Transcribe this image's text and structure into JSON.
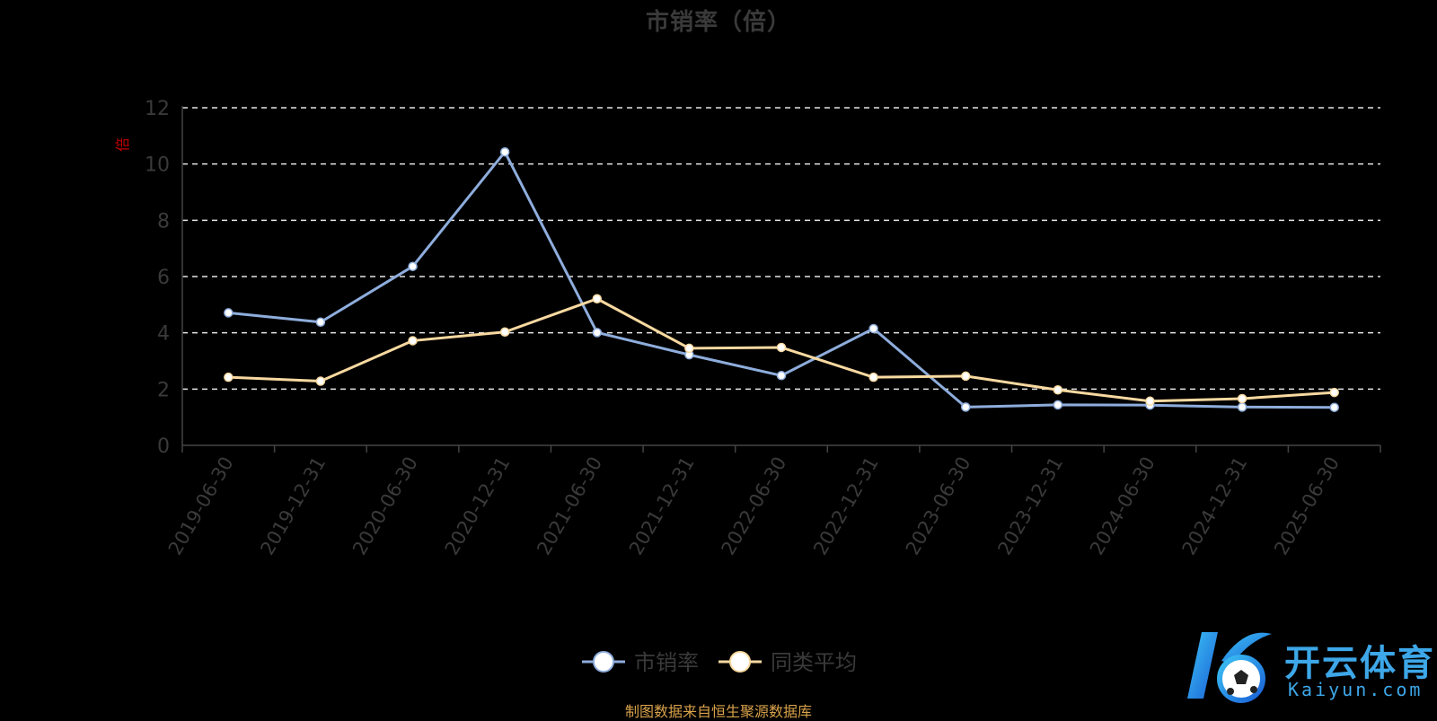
{
  "chart_data": {
    "type": "line",
    "title": "市销率（倍）",
    "ylabel": "倍",
    "xlabel": "",
    "ylim": [
      0,
      12
    ],
    "yticks": [
      0,
      2,
      4,
      6,
      8,
      10,
      12
    ],
    "grid": true,
    "legend_position": "bottom",
    "categories": [
      "2019-06-30",
      "2019-12-31",
      "2020-06-30",
      "2020-12-31",
      "2021-06-30",
      "2021-12-31",
      "2022-06-30",
      "2022-12-31",
      "2023-06-30",
      "2023-12-31",
      "2024-06-30",
      "2024-12-31",
      "2025-06-30"
    ],
    "series": [
      {
        "name": "市销率",
        "color": "#8eaddc",
        "values": [
          4.71,
          4.38,
          6.36,
          10.43,
          4.01,
          3.22,
          2.48,
          4.15,
          1.36,
          1.44,
          1.43,
          1.36,
          1.35
        ]
      },
      {
        "name": "同类平均",
        "color": "#f8d9a0",
        "values": [
          2.42,
          2.28,
          3.72,
          4.03,
          5.21,
          3.45,
          3.48,
          2.42,
          2.46,
          1.97,
          1.57,
          1.66,
          1.88
        ]
      }
    ]
  },
  "source_note": "制图数据来自恒生聚源数据库",
  "logo": {
    "text_cn": "开云体育",
    "text_en": "Kaiyun.com",
    "icon": "kaiyun-soccer-logo-icon"
  }
}
